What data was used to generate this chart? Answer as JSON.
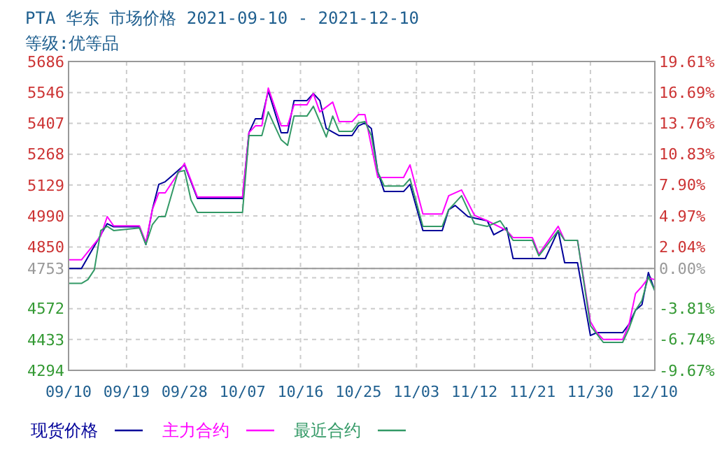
{
  "chart_data": {
    "type": "line",
    "title": "PTA 华东 市场价格 2021-09-10 - 2021-12-10",
    "subtitle": "等级:优等品",
    "xlim": [
      "2021-09-10",
      "2021-12-10"
    ],
    "xticks": [
      {
        "value": "2021-09-10",
        "label": "09/10"
      },
      {
        "value": "2021-09-19",
        "label": "09/19"
      },
      {
        "value": "2021-09-28",
        "label": "09/28"
      },
      {
        "value": "2021-10-07",
        "label": "10/07"
      },
      {
        "value": "2021-10-16",
        "label": "10/16"
      },
      {
        "value": "2021-10-25",
        "label": "10/25"
      },
      {
        "value": "2021-11-03",
        "label": "11/03"
      },
      {
        "value": "2021-11-12",
        "label": "11/12"
      },
      {
        "value": "2021-11-21",
        "label": "11/21"
      },
      {
        "value": "2021-11-30",
        "label": "11/30"
      },
      {
        "value": "2021-12-10",
        "label": "12/10"
      }
    ],
    "ylim": [
      4294,
      5686
    ],
    "yticks": [
      4294,
      4433,
      4572,
      {
        "value": 4711,
        "label": null
      },
      4753,
      4850,
      4990,
      5129,
      5268,
      5407,
      5546,
      5686
    ],
    "y2lim": [
      -9.67,
      19.61
    ],
    "y2ticks": [
      {
        "value": -9.67,
        "label": "-9.67%"
      },
      {
        "value": -6.74,
        "label": "-6.74%"
      },
      {
        "value": -3.81,
        "label": "-3.81%"
      },
      {
        "value": 0,
        "label": "0.00%"
      },
      {
        "value": 2.04,
        "label": "2.04%"
      },
      {
        "value": 4.97,
        "label": "4.97%"
      },
      {
        "value": 7.9,
        "label": "7.90%"
      },
      {
        "value": 10.83,
        "label": "10.83%"
      },
      {
        "value": 13.76,
        "label": "13.76%"
      },
      {
        "value": 16.69,
        "label": "16.69%"
      },
      {
        "value": 19.61,
        "label": "19.61%"
      }
    ],
    "ref_lines": [
      {
        "axis": "y",
        "value": 4753,
        "label": null,
        "color": "#999999"
      }
    ],
    "grid": true,
    "legend": "bottom",
    "line_style": "solid",
    "marker": "none",
    "series": [
      {
        "name": "现货价格",
        "color": "#000099",
        "x": [
          "2021-09-10",
          "2021-09-12",
          "2021-09-15",
          "2021-09-16",
          "2021-09-17",
          "2021-09-21",
          "2021-09-22",
          "2021-09-23",
          "2021-09-24",
          "2021-09-25",
          "2021-09-27",
          "2021-09-28",
          "2021-09-30",
          "2021-10-07",
          "2021-10-08",
          "2021-10-09",
          "2021-10-10",
          "2021-10-11",
          "2021-10-13",
          "2021-10-14",
          "2021-10-15",
          "2021-10-17",
          "2021-10-18",
          "2021-10-19",
          "2021-10-20",
          "2021-10-22",
          "2021-10-24",
          "2021-10-25",
          "2021-10-26",
          "2021-10-27",
          "2021-10-28",
          "2021-10-29",
          "2021-11-01",
          "2021-11-02",
          "2021-11-04",
          "2021-11-07",
          "2021-11-08",
          "2021-11-09",
          "2021-11-11",
          "2021-11-14",
          "2021-11-15",
          "2021-11-17",
          "2021-11-18",
          "2021-11-23",
          "2021-11-25",
          "2021-11-26",
          "2021-11-28",
          "2021-11-30",
          "2021-12-01",
          "2021-12-05",
          "2021-12-06",
          "2021-12-07",
          "2021-12-08",
          "2021-12-09",
          "2021-12-10"
        ],
        "values": [
          4753,
          4753,
          4905,
          4955,
          4941,
          4941,
          4861,
          5018,
          5132,
          5144,
          5195,
          5220,
          5069,
          5069,
          5365,
          5428,
          5428,
          5554,
          5365,
          5365,
          5510,
          5510,
          5541,
          5510,
          5384,
          5352,
          5352,
          5396,
          5409,
          5384,
          5188,
          5100,
          5100,
          5132,
          4924,
          4924,
          5018,
          5037,
          4987,
          4968,
          4905,
          4936,
          4798,
          4798,
          4924,
          4779,
          4779,
          4451,
          4464,
          4464,
          4502,
          4565,
          4590,
          4735,
          4653
        ]
      },
      {
        "name": "主力合约",
        "color": "#ff00ff",
        "x": [
          "2021-09-10",
          "2021-09-12",
          "2021-09-15",
          "2021-09-16",
          "2021-09-17",
          "2021-09-21",
          "2021-09-22",
          "2021-09-23",
          "2021-09-24",
          "2021-09-25",
          "2021-09-28",
          "2021-09-30",
          "2021-10-07",
          "2021-10-08",
          "2021-10-09",
          "2021-10-10",
          "2021-10-11",
          "2021-10-13",
          "2021-10-14",
          "2021-10-15",
          "2021-10-17",
          "2021-10-18",
          "2021-10-19",
          "2021-10-21",
          "2021-10-22",
          "2021-10-24",
          "2021-10-25",
          "2021-10-26",
          "2021-10-28",
          "2021-11-01",
          "2021-11-02",
          "2021-11-04",
          "2021-11-07",
          "2021-11-08",
          "2021-11-10",
          "2021-11-12",
          "2021-11-14",
          "2021-11-17",
          "2021-11-18",
          "2021-11-21",
          "2021-11-22",
          "2021-11-25",
          "2021-11-26",
          "2021-11-28",
          "2021-11-30",
          "2021-12-01",
          "2021-12-02",
          "2021-12-05",
          "2021-12-06",
          "2021-12-07",
          "2021-12-08",
          "2021-12-09",
          "2021-12-10"
        ],
        "values": [
          4792,
          4792,
          4900,
          4987,
          4945,
          4945,
          4870,
          5018,
          5094,
          5094,
          5226,
          5075,
          5075,
          5365,
          5396,
          5396,
          5566,
          5396,
          5396,
          5491,
          5491,
          5541,
          5459,
          5503,
          5415,
          5415,
          5447,
          5447,
          5163,
          5163,
          5220,
          4999,
          4999,
          5081,
          5107,
          4993,
          4968,
          4924,
          4892,
          4892,
          4817,
          4943,
          4880,
          4880,
          4514,
          4464,
          4433,
          4433,
          4502,
          4640,
          4672,
          4710,
          4703
        ]
      },
      {
        "name": "最近合约",
        "color": "#339966",
        "x": [
          "2021-09-10",
          "2021-09-12",
          "2021-09-13",
          "2021-09-14",
          "2021-09-15",
          "2021-09-16",
          "2021-09-17",
          "2021-09-21",
          "2021-09-22",
          "2021-09-23",
          "2021-09-24",
          "2021-09-25",
          "2021-09-27",
          "2021-09-28",
          "2021-09-29",
          "2021-09-30",
          "2021-10-07",
          "2021-10-08",
          "2021-10-10",
          "2021-10-11",
          "2021-10-13",
          "2021-10-14",
          "2021-10-15",
          "2021-10-17",
          "2021-10-18",
          "2021-10-20",
          "2021-10-21",
          "2021-10-22",
          "2021-10-24",
          "2021-10-25",
          "2021-10-26",
          "2021-10-27",
          "2021-10-28",
          "2021-10-29",
          "2021-11-01",
          "2021-11-02",
          "2021-11-04",
          "2021-11-07",
          "2021-11-08",
          "2021-11-10",
          "2021-11-12",
          "2021-11-14",
          "2021-11-16",
          "2021-11-18",
          "2021-11-21",
          "2021-11-22",
          "2021-11-25",
          "2021-11-26",
          "2021-11-28",
          "2021-11-30",
          "2021-12-02",
          "2021-12-05",
          "2021-12-06",
          "2021-12-07",
          "2021-12-08",
          "2021-12-09",
          "2021-12-10"
        ],
        "values": [
          4686,
          4686,
          4703,
          4747,
          4924,
          4943,
          4924,
          4936,
          4861,
          4950,
          4987,
          4987,
          5188,
          5195,
          5062,
          5006,
          5006,
          5352,
          5352,
          5459,
          5333,
          5308,
          5440,
          5440,
          5484,
          5346,
          5440,
          5371,
          5371,
          5409,
          5415,
          5352,
          5188,
          5125,
          5125,
          5157,
          4943,
          4943,
          5018,
          5081,
          4955,
          4943,
          4968,
          4880,
          4880,
          4810,
          4924,
          4880,
          4880,
          4495,
          4420,
          4420,
          4483,
          4565,
          4609,
          4716,
          4653
        ]
      }
    ]
  }
}
